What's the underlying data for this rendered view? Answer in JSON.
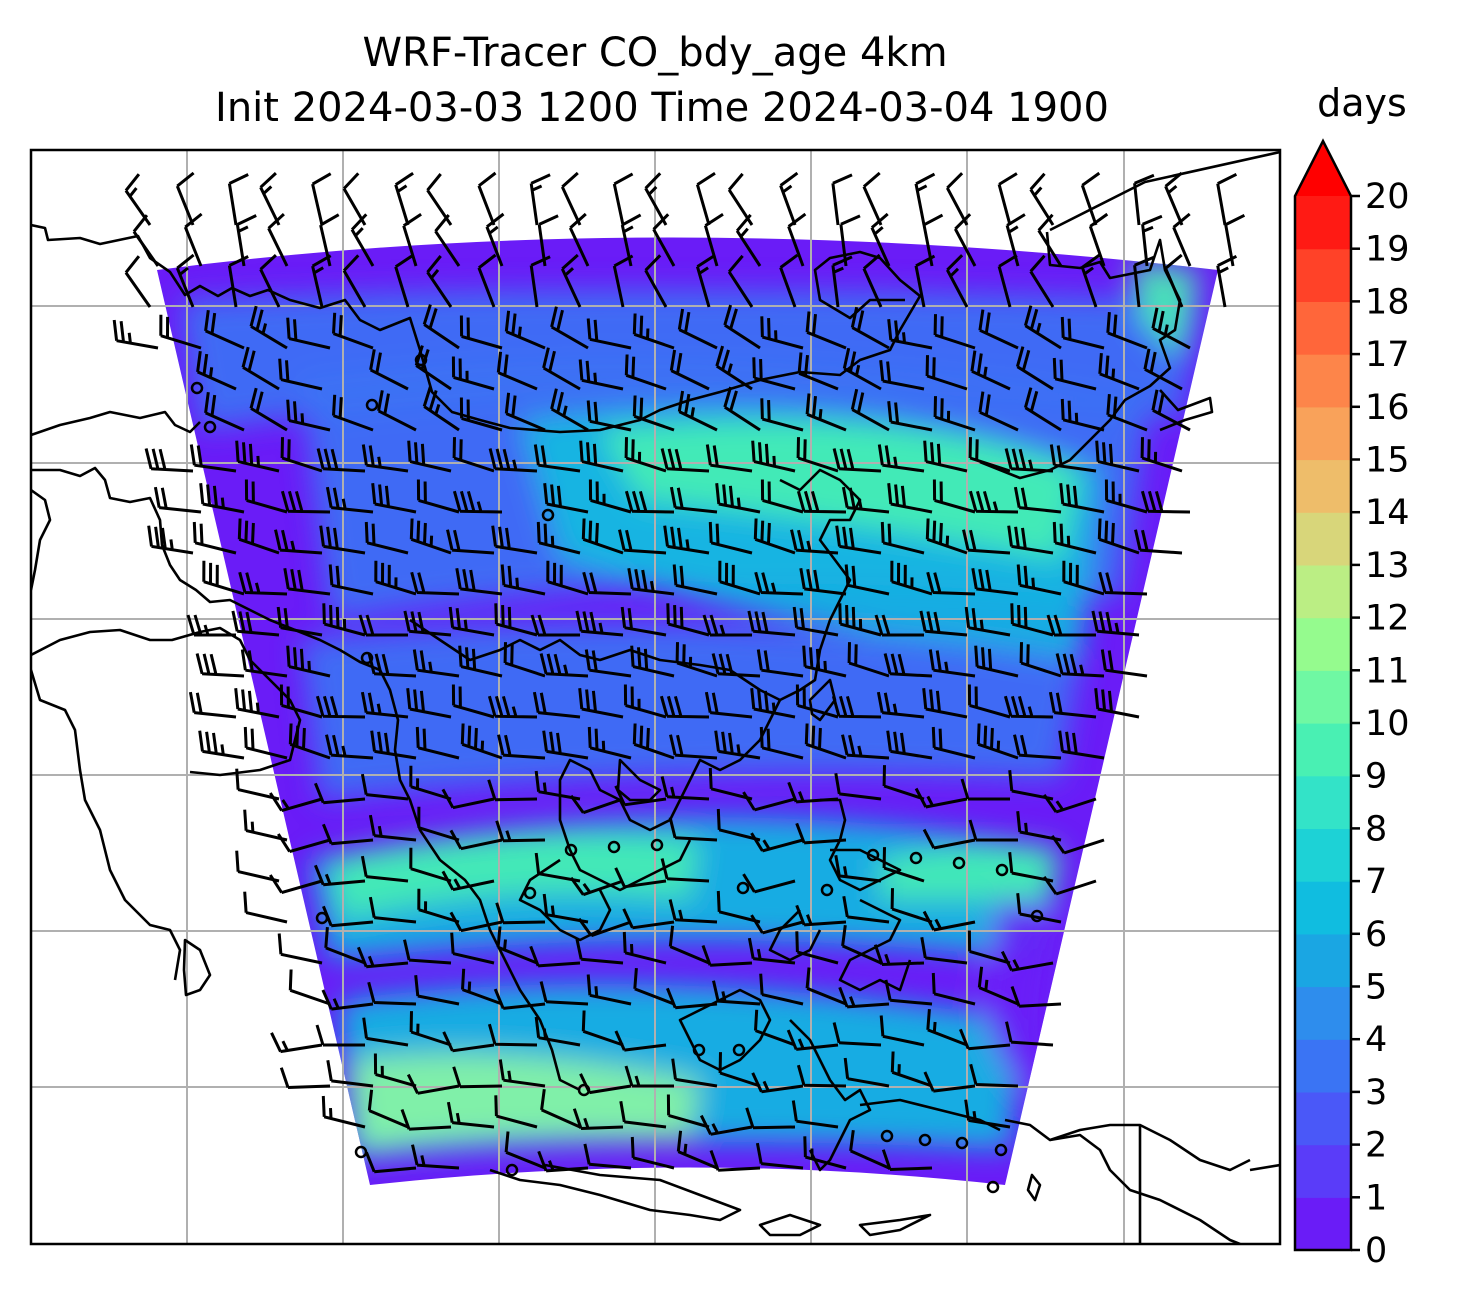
{
  "title": {
    "line1": "WRF-Tracer CO_bdy_age 4km",
    "line2": "Init 2024-03-03 1200 Time 2024-03-04 1900"
  },
  "colorbar": {
    "unit": "days",
    "ticks": [
      "0",
      "1",
      "2",
      "3",
      "4",
      "5",
      "6",
      "7",
      "8",
      "9",
      "10",
      "11",
      "12",
      "13",
      "14",
      "15",
      "16",
      "17",
      "18",
      "19",
      "20"
    ],
    "colors": [
      "#6a1cf7",
      "#5a3cf9",
      "#4a58f8",
      "#3a74f4",
      "#2e8ded",
      "#1aa6e3",
      "#10bde0",
      "#1dd2d6",
      "#33e3c8",
      "#49f0b3",
      "#6ff8a3",
      "#95fb8e",
      "#bbee84",
      "#d8d67a",
      "#eebd6a",
      "#f9a25a",
      "#fd854a",
      "#ff663a",
      "#ff4228",
      "#ff1a14"
    ],
    "extend_color": "#ff0000"
  },
  "map": {
    "field_colors": {
      "low": "#6a1cf7",
      "mid_low": "#3a74f4",
      "mid": "#10bde0",
      "high": "#49f0b3",
      "peak": "#8cf7a3"
    },
    "gridline_color": "#b0b0b0",
    "coast_color": "#000000"
  }
}
